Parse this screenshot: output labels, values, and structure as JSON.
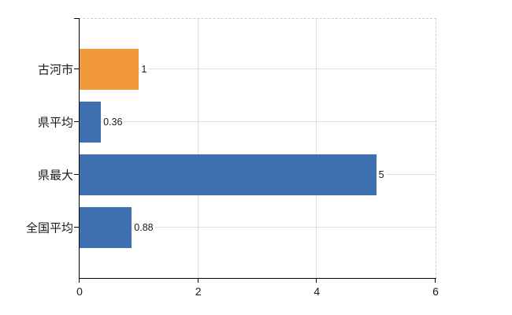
{
  "chart_data": {
    "type": "bar",
    "orientation": "horizontal",
    "title": "",
    "categories": [
      "古河市",
      "県平均",
      "県最大",
      "全国平均"
    ],
    "values": [
      1,
      0.36,
      5,
      0.88
    ],
    "value_labels": [
      "1",
      "0.36",
      "5",
      "0.88"
    ],
    "bar_colors": [
      "#f29a3b",
      "#3d6fb1",
      "#3d6fb1",
      "#3d6fb1"
    ],
    "highlight_color": "#f29a3b",
    "default_color": "#3d6fb1",
    "xlim": [
      0,
      6
    ],
    "x_tick_values": [
      0,
      2,
      4,
      6
    ],
    "x_tick_labels": [
      "0",
      "2",
      "4",
      "6"
    ],
    "grid": true,
    "legend_visible": false,
    "colors": {
      "axis": "#000000",
      "gridline": "#dde1da",
      "dashed_border": "#cfcccc",
      "text": "#1a1a1a",
      "background": "#ffffff"
    }
  }
}
